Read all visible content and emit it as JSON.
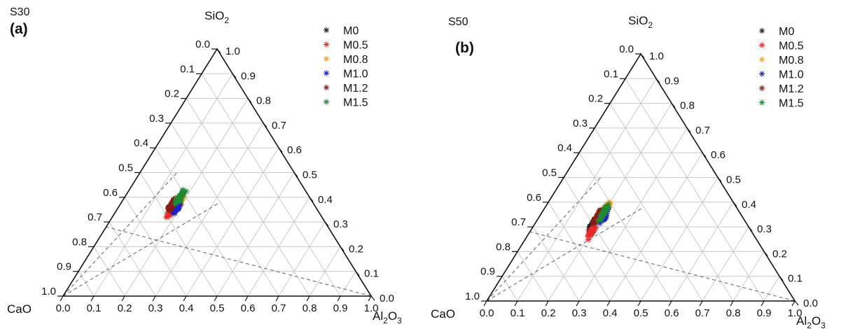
{
  "chart_data": [
    {
      "type": "scatter",
      "subtype": "ternary",
      "sample_label": "S30",
      "panel_label": "(a)",
      "vertex_labels": {
        "top": "SiO",
        "top_sub": "2",
        "left": "CaO",
        "right": "Al",
        "right_sub1": "2",
        "right_mid": "O",
        "right_sub2": "3"
      },
      "ticks": [
        "0.0",
        "0.1",
        "0.2",
        "0.3",
        "0.4",
        "0.5",
        "0.6",
        "0.7",
        "0.8",
        "0.9",
        "1.0"
      ],
      "grid": true,
      "legend_position": "top-right",
      "series": [
        {
          "name": "M0",
          "color": "#222222",
          "center": {
            "CaO": 0.46,
            "Al2O3": 0.17,
            "SiO2": 0.37
          }
        },
        {
          "name": "M0.5",
          "color": "#e8292b",
          "center": {
            "CaO": 0.47,
            "Al2O3": 0.18,
            "SiO2": 0.35
          }
        },
        {
          "name": "M0.8",
          "color": "#f2a02e",
          "center": {
            "CaO": 0.44,
            "Al2O3": 0.19,
            "SiO2": 0.37
          }
        },
        {
          "name": "M1.0",
          "color": "#1a22c8",
          "center": {
            "CaO": 0.45,
            "Al2O3": 0.19,
            "SiO2": 0.36
          }
        },
        {
          "name": "M1.2",
          "color": "#8b1c12",
          "center": {
            "CaO": 0.46,
            "Al2O3": 0.17,
            "SiO2": 0.37
          }
        },
        {
          "name": "M1.5",
          "color": "#1f8a32",
          "center": {
            "CaO": 0.42,
            "Al2O3": 0.18,
            "SiO2": 0.4
          }
        }
      ]
    },
    {
      "type": "scatter",
      "subtype": "ternary",
      "sample_label": "S50",
      "panel_label": "(b)",
      "vertex_labels": {
        "top": "SiO",
        "top_sub": "2",
        "left": "CaO",
        "right": "Al",
        "right_sub1": "2",
        "right_mid": "O",
        "right_sub2": "3"
      },
      "ticks": [
        "0.0",
        "0.1",
        "0.2",
        "0.3",
        "0.4",
        "0.5",
        "0.6",
        "0.7",
        "0.8",
        "0.9",
        "1.0"
      ],
      "grid": true,
      "legend_position": "top-right",
      "series": [
        {
          "name": "M0",
          "color": "#222222",
          "center": {
            "CaO": 0.5,
            "Al2O3": 0.19,
            "SiO2": 0.31
          }
        },
        {
          "name": "M0.5",
          "color": "#e8292b",
          "center": {
            "CaO": 0.52,
            "Al2O3": 0.2,
            "SiO2": 0.28
          }
        },
        {
          "name": "M0.8",
          "color": "#f2a02e",
          "center": {
            "CaO": 0.43,
            "Al2O3": 0.2,
            "SiO2": 0.37
          }
        },
        {
          "name": "M1.0",
          "color": "#1a22c8",
          "center": {
            "CaO": 0.45,
            "Al2O3": 0.21,
            "SiO2": 0.34
          }
        },
        {
          "name": "M1.2",
          "color": "#8b1c12",
          "center": {
            "CaO": 0.47,
            "Al2O3": 0.19,
            "SiO2": 0.34
          }
        },
        {
          "name": "M1.5",
          "color": "#1f8a32",
          "center": {
            "CaO": 0.44,
            "Al2O3": 0.2,
            "SiO2": 0.36
          }
        }
      ]
    }
  ]
}
